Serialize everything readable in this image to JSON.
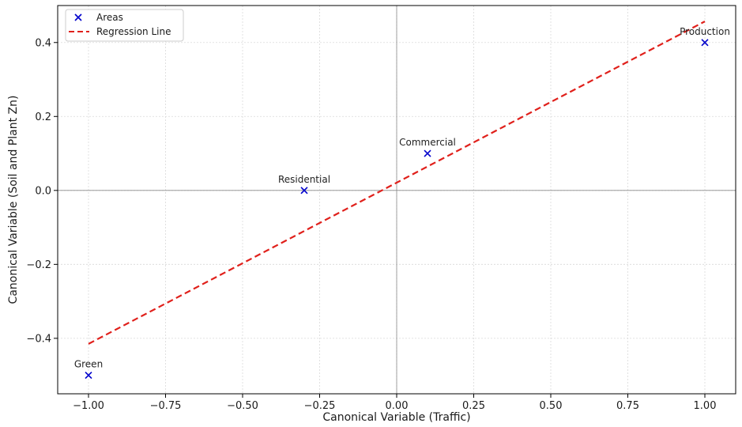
{
  "chart_data": {
    "type": "scatter",
    "xlabel": "Canonical Variable (Traffic)",
    "ylabel": "Canonical Variable (Soil and Plant Zn)",
    "xlim": [
      -1.1,
      1.1
    ],
    "ylim": [
      -0.55,
      0.5
    ],
    "x_ticks": [
      -1.0,
      -0.75,
      -0.5,
      -0.25,
      0.0,
      0.25,
      0.5,
      0.75,
      1.0
    ],
    "x_tick_labels": [
      "−1.00",
      "−0.75",
      "−0.50",
      "−0.25",
      "0.00",
      "0.25",
      "0.50",
      "0.75",
      "1.00"
    ],
    "y_ticks": [
      -0.4,
      -0.2,
      0.0,
      0.2,
      0.4
    ],
    "y_tick_labels": [
      "−0.4",
      "−0.2",
      "0.0",
      "0.2",
      "0.4"
    ],
    "grid": true,
    "reference_lines": {
      "x": 0,
      "y": 0
    },
    "legend": {
      "placement": "upper-left",
      "entries": [
        "Areas",
        "Regression Line"
      ]
    },
    "series": [
      {
        "name": "Areas",
        "type": "scatter",
        "marker": "x",
        "color": "#0000cc",
        "points": [
          {
            "label": "Green",
            "x": -1.0,
            "y": -0.5
          },
          {
            "label": "Residential",
            "x": -0.3,
            "y": 0.0
          },
          {
            "label": "Commercial",
            "x": 0.1,
            "y": 0.1
          },
          {
            "label": "Production",
            "x": 1.0,
            "y": 0.4
          }
        ]
      },
      {
        "name": "Regression Line",
        "type": "line",
        "style": "dashed",
        "color": "#e0201b",
        "x": [
          -1.0,
          1.0
        ],
        "y": [
          -0.415,
          0.457
        ]
      }
    ]
  }
}
